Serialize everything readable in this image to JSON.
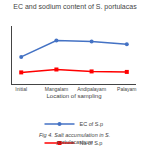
{
  "chart_data": {
    "type": "line",
    "title": "EC and sodium content of S. portulacas",
    "x_label": "Location of sampling",
    "categories": [
      "Initial",
      "Mangalam",
      "Andipalayam",
      "Palayam"
    ],
    "series": [
      {
        "name": "EC of S.p",
        "color": "#4472C4",
        "marker": "circle",
        "values": [
          2.8,
          4.5,
          4.4,
          4.1
        ]
      },
      {
        "name": "Na of S.p",
        "color": "#FF0000",
        "marker": "square",
        "values": [
          1.2,
          1.5,
          1.3,
          1.25
        ]
      }
    ],
    "ylim": [
      0,
      6
    ],
    "yticks": [],
    "tick_labels": "x",
    "grid": false,
    "legend": "bottom",
    "annotations": [
      "Fig 4. Salt accumulation in S. portulacastrum"
    ]
  }
}
